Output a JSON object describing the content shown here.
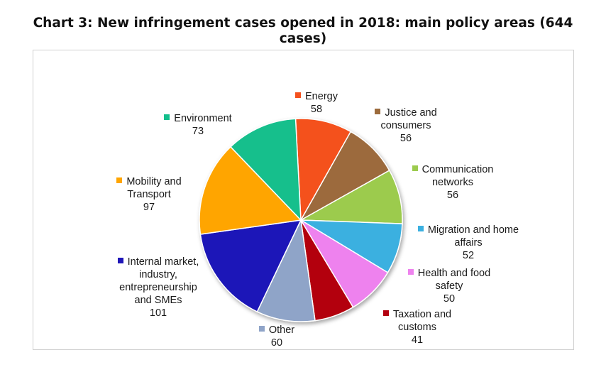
{
  "chart_data": {
    "type": "pie",
    "title": "Chart 3: New infringement cases opened in 2018: main policy areas (644 cases)",
    "series": [
      {
        "name": "Energy",
        "label": "Energy",
        "value": 58,
        "color": "#F4511E"
      },
      {
        "name": "Justice and consumers",
        "label": "Justice and\nconsumers",
        "value": 56,
        "color": "#9C6B3C"
      },
      {
        "name": "Communication networks",
        "label": "Communication\nnetworks",
        "value": 56,
        "color": "#9CCB4E"
      },
      {
        "name": "Migration and home affairs",
        "label": "Migration and home\naffairs",
        "value": 52,
        "color": "#3BB0E0"
      },
      {
        "name": "Health and food safety",
        "label": "Health and food\nsafety",
        "value": 50,
        "color": "#EE82EE"
      },
      {
        "name": "Taxation and customs",
        "label": "Taxation and\ncustoms",
        "value": 41,
        "color": "#B30010"
      },
      {
        "name": "Other",
        "label": "Other",
        "value": 60,
        "color": "#8FA4C8"
      },
      {
        "name": "Internal market, industry, entrepreneurship and SMEs",
        "label": "Internal market,\nindustry,\nentrepreneurship\nand SMEs",
        "value": 101,
        "color": "#1F16B8"
      },
      {
        "name": "Mobility and Transport",
        "label": "Mobility and\nTransport",
        "value": 97,
        "color": "#FFA500"
      },
      {
        "name": "Environment",
        "label": "Environment",
        "value": 73,
        "color": "#13BF8C"
      }
    ],
    "legend": "none",
    "grid": false
  }
}
